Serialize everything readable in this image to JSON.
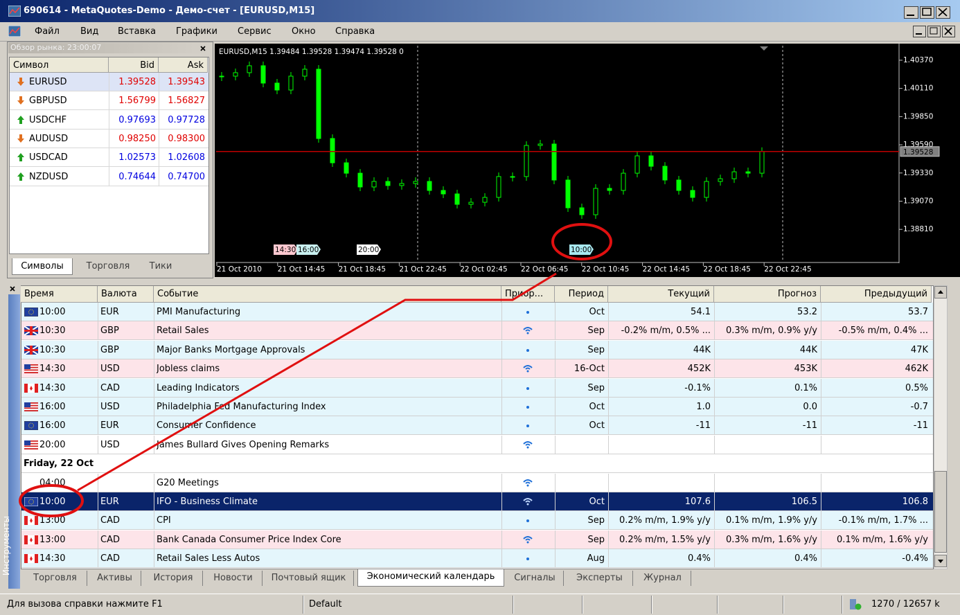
{
  "window": {
    "title": "690614 - MetaQuotes-Demo - Демо-счет - [EURUSD,M15]"
  },
  "menu": [
    "Файл",
    "Вид",
    "Вставка",
    "Графики",
    "Сервис",
    "Окно",
    "Справка"
  ],
  "market_watch": {
    "title": "Обзор рынка: 23:00:07",
    "columns": [
      "Символ",
      "Bid",
      "Ask"
    ],
    "rows": [
      {
        "symbol": "EURUSD",
        "bid": "1.39528",
        "ask": "1.39543",
        "direction": "down"
      },
      {
        "symbol": "GBPUSD",
        "bid": "1.56799",
        "ask": "1.56827",
        "direction": "down"
      },
      {
        "symbol": "USDCHF",
        "bid": "0.97693",
        "ask": "0.97728",
        "direction": "up"
      },
      {
        "symbol": "AUDUSD",
        "bid": "0.98250",
        "ask": "0.98300",
        "direction": "down"
      },
      {
        "symbol": "USDCAD",
        "bid": "1.02573",
        "ask": "1.02608",
        "direction": "up"
      },
      {
        "symbol": "NZDUSD",
        "bid": "0.74644",
        "ask": "0.74700",
        "direction": "up"
      }
    ],
    "tabs": [
      "Символы",
      "Торговля",
      "Тики"
    ]
  },
  "chart_data": {
    "type": "candlestick",
    "title": "EURUSD,M15 1.39484 1.39528 1.39474 1.39528 0",
    "color": "#00ff00",
    "background": "#000000",
    "closes": [
      1.40223,
      1.40255,
      1.40319,
      1.40159,
      1.40095,
      1.40223,
      1.40287,
      1.39648,
      1.39424,
      1.39328,
      1.39201,
      1.39252,
      1.39214,
      1.39233,
      1.39252,
      1.39169,
      1.39137,
      1.39041,
      1.3906,
      1.39105,
      1.39297,
      1.39297,
      1.39584,
      1.39597,
      1.39265,
      1.39009,
      1.38945,
      1.39188,
      1.39169,
      1.39328,
      1.39488,
      1.39392,
      1.39265,
      1.39169,
      1.39105,
      1.39252,
      1.39277,
      1.39341,
      1.39328,
      1.39528
    ],
    "ylim": [
      1.38511,
      1.40491
    ],
    "yticks": [
      {
        "value": 1.4037,
        "label": "1.40370"
      },
      {
        "value": 1.4011,
        "label": "1.40110"
      },
      {
        "value": 1.3985,
        "label": "1.39850"
      },
      {
        "value": 1.3959,
        "label": "1.39590"
      },
      {
        "value": 1.3933,
        "label": "1.39330"
      },
      {
        "value": 1.3907,
        "label": "1.39070"
      },
      {
        "value": 1.3881,
        "label": "1.38810"
      }
    ],
    "current_price": 1.39528,
    "price_line_color": "#c00000",
    "x_labels": [
      "21 Oct 2010",
      "21 Oct 14:45",
      "21 Oct 18:45",
      "21 Oct 22:45",
      "22 Oct 02:45",
      "22 Oct 06:45",
      "22 Oct 10:45",
      "22 Oct 14:45",
      "22 Oct 18:45",
      "22 Oct 22:45"
    ],
    "events": [
      "14:30",
      "16:00",
      "20:00",
      "10:00"
    ]
  },
  "calendar": {
    "columns": [
      "Время",
      "Валюта",
      "Событие",
      "Приор...",
      "Период",
      "Текущий",
      "Прогноз",
      "Предыдущий"
    ],
    "selected_row": 10,
    "rows": [
      {
        "time": "10:00",
        "currency": "EUR",
        "event": "PMI Manufacturing",
        "priority": "low",
        "period": "Oct",
        "actual": "54.1",
        "forecast": "53.2",
        "previous": "53.7"
      },
      {
        "time": "10:30",
        "currency": "GBP",
        "event": "Retail Sales",
        "priority": "high",
        "period": "Sep",
        "actual": "-0.2% m/m, 0.5% ...",
        "forecast": "0.3% m/m, 0.9% y/y",
        "previous": "-0.5% m/m, 0.4% ..."
      },
      {
        "time": "10:30",
        "currency": "GBP",
        "event": "Major Banks Mortgage Approvals",
        "priority": "low",
        "period": "Sep",
        "actual": "44K",
        "forecast": "44K",
        "previous": "47K"
      },
      {
        "time": "14:30",
        "currency": "USD",
        "event": "Jobless claims",
        "priority": "high",
        "period": "16-Oct",
        "actual": "452K",
        "forecast": "453K",
        "previous": "462K"
      },
      {
        "time": "14:30",
        "currency": "CAD",
        "event": "Leading Indicators",
        "priority": "low",
        "period": "Sep",
        "actual": "-0.1%",
        "forecast": "0.1%",
        "previous": "0.5%"
      },
      {
        "time": "16:00",
        "currency": "USD",
        "event": "Philadelphia Fed Manufacturing Index",
        "priority": "low",
        "period": "Oct",
        "actual": "1.0",
        "forecast": "0.0",
        "previous": "-0.7"
      },
      {
        "time": "16:00",
        "currency": "EUR",
        "event": "Consumer Confidence",
        "priority": "low",
        "period": "Oct",
        "actual": "-11",
        "forecast": "-11",
        "previous": "-11"
      },
      {
        "time": "20:00",
        "currency": "USD",
        "event": "James Bullard Gives Opening Remarks",
        "priority": "high"
      },
      {
        "group": "Friday, 22 Oct"
      },
      {
        "time": "04:00",
        "event": "G20 Meetings",
        "priority": "high"
      },
      {
        "time": "10:00",
        "currency": "EUR",
        "event": "IFO - Business Climate",
        "priority": "high",
        "period": "Oct",
        "actual": "107.6",
        "forecast": "106.5",
        "previous": "106.8"
      },
      {
        "time": "13:00",
        "currency": "CAD",
        "event": "CPI",
        "priority": "low",
        "period": "Sep",
        "actual": "0.2% m/m, 1.9% y/y",
        "forecast": "0.1% m/m, 1.9% y/y",
        "previous": "-0.1% m/m, 1.7% ..."
      },
      {
        "time": "13:00",
        "currency": "CAD",
        "event": "Bank Canada Consumer Price Index Core",
        "priority": "high",
        "period": "Sep",
        "actual": "0.2% m/m, 1.5% y/y",
        "forecast": "0.3% m/m, 1.6% y/y",
        "previous": "0.1% m/m, 1.6% y/y"
      },
      {
        "time": "14:30",
        "currency": "CAD",
        "event": "Retail Sales Less Autos",
        "priority": "low",
        "period": "Aug",
        "actual": "0.4%",
        "forecast": "0.4%",
        "previous": "-0.4%"
      }
    ]
  },
  "side_label": "Инструменты",
  "terminal_tabs": [
    "Торговля",
    "Активы",
    "История",
    "Новости",
    "Почтовый ящик",
    "Экономический календарь",
    "Сигналы",
    "Эксперты",
    "Журнал"
  ],
  "active_tab": 5,
  "status": [
    "Для вызова справки нажмите F1",
    "Default",
    "1270 / 12657 k"
  ]
}
